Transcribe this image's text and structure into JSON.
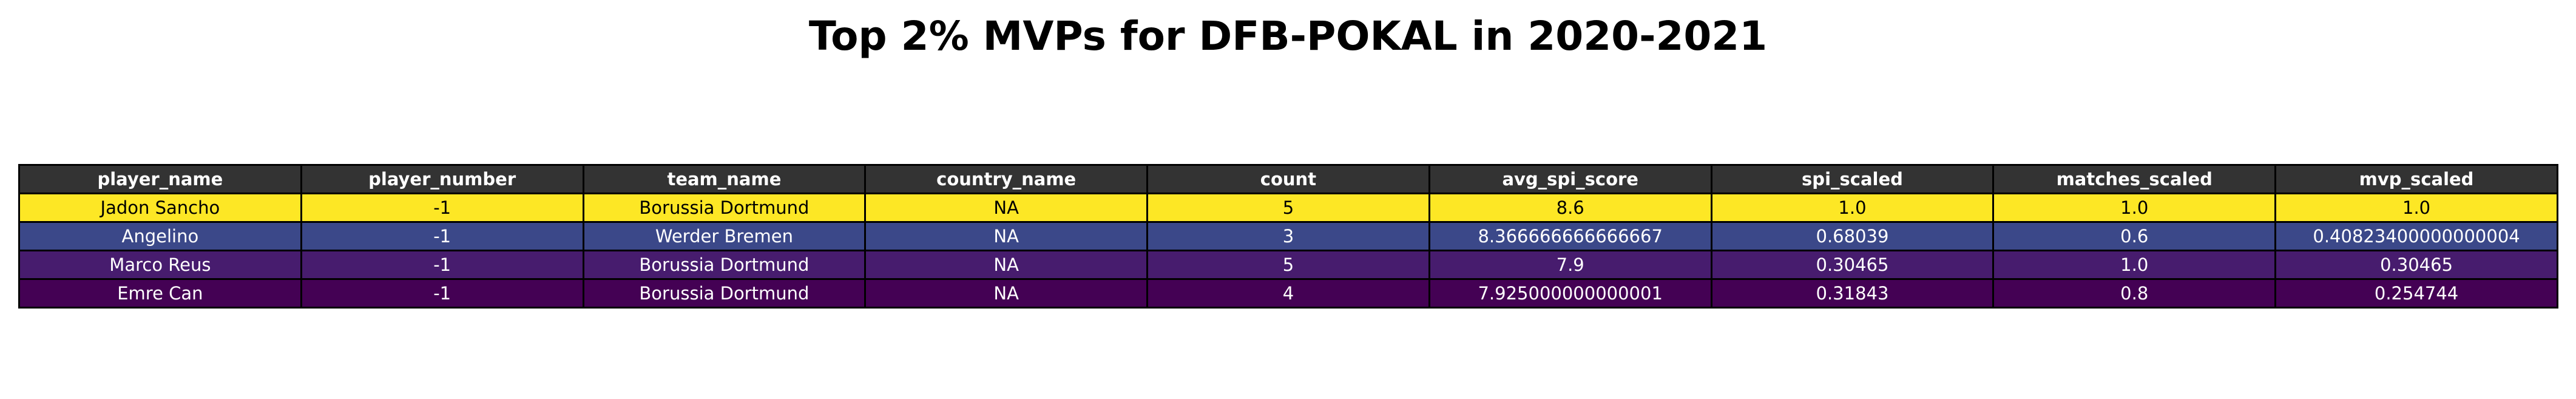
{
  "chart_data": {
    "type": "table",
    "title": "Top 2% MVPs for DFB-POKAL in 2020-2021",
    "columns": [
      "player_name",
      "player_number",
      "team_name",
      "country_name",
      "count",
      "avg_spi_score",
      "spi_scaled",
      "matches_scaled",
      "mvp_scaled"
    ],
    "rows": [
      {
        "color": "#fde725",
        "text_color": "#000000",
        "cells": [
          "Jadon Sancho",
          "-1",
          "Borussia Dortmund",
          "NA",
          "5",
          "8.6",
          "1.0",
          "1.0",
          "1.0"
        ]
      },
      {
        "color": "#3b4889",
        "text_color": "#ffffff",
        "cells": [
          "Angelino",
          "-1",
          "Werder Bremen",
          "NA",
          "3",
          "8.366666666666667",
          "0.68039",
          "0.6",
          "0.40823400000000004"
        ]
      },
      {
        "color": "#471c6e",
        "text_color": "#ffffff",
        "cells": [
          "Marco Reus",
          "-1",
          "Borussia Dortmund",
          "NA",
          "5",
          "7.9",
          "0.30465",
          "1.0",
          "0.30465"
        ]
      },
      {
        "color": "#440154",
        "text_color": "#ffffff",
        "cells": [
          "Emre Can",
          "-1",
          "Borussia Dortmund",
          "NA",
          "4",
          "7.925000000000001",
          "0.31843",
          "0.8",
          "0.254744"
        ]
      }
    ],
    "header_color": "#333333",
    "header_text_color": "#ffffff"
  }
}
